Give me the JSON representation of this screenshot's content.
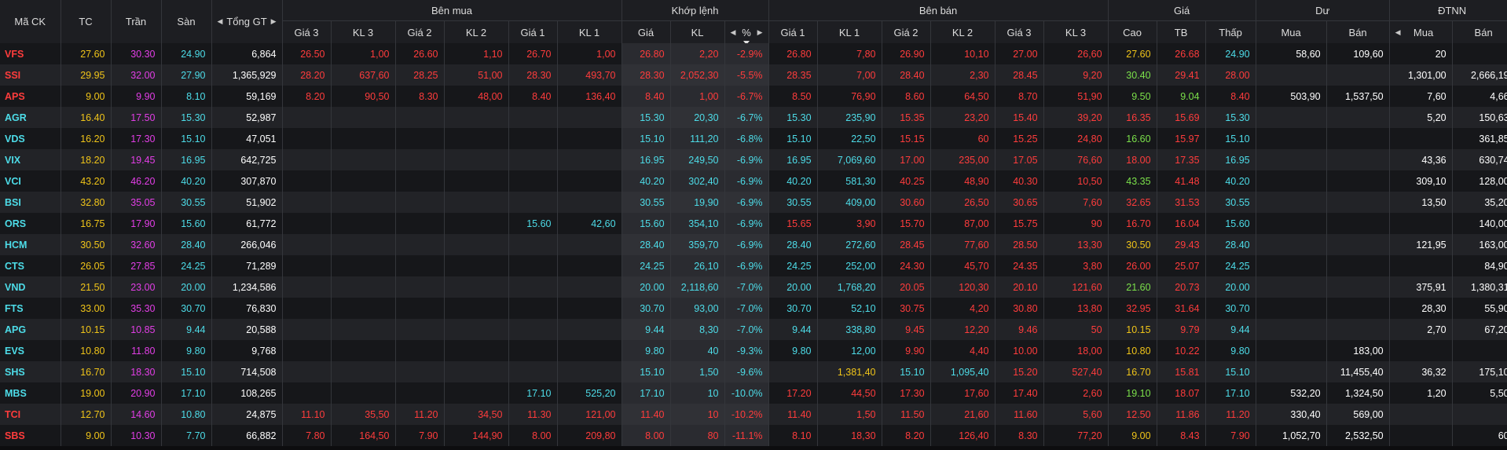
{
  "colors": {
    "ref": "#f0c419",
    "ceil": "#e23ee6",
    "floor": "#4ddce8",
    "up": "#7be04a",
    "down": "#ff3c3c",
    "flat": "#f0c419",
    "neutral": "#ffffff"
  },
  "headers": {
    "symbol": "Mã CK",
    "ref": "TC",
    "ceil": "Trần",
    "floor": "Sàn",
    "total": "Tổng GT",
    "buy": "Bên mua",
    "match": "Khớp lệnh",
    "sell": "Bên bán",
    "price": "Giá",
    "remain": "Dư",
    "foreign": "ĐTNN",
    "buy_cols": [
      "Giá 3",
      "KL 3",
      "Giá 2",
      "KL 2",
      "Giá 1",
      "KL 1"
    ],
    "match_cols": [
      "Giá",
      "KL",
      "%"
    ],
    "sell_cols": [
      "Giá 1",
      "KL 1",
      "Giá 2",
      "KL 2",
      "Giá 3",
      "KL 3"
    ],
    "price_cols": [
      "Cao",
      "TB",
      "Thấp"
    ],
    "remain_cols": [
      "Mua",
      "Bán"
    ],
    "foreign_cols": [
      "Mua",
      "Bán"
    ]
  },
  "rows": [
    {
      "sym": "VFS",
      "tc": "27.60",
      "tran": "30.30",
      "san": "24.90",
      "tgt": "6,864",
      "b3": "26.50",
      "kb3": "1,00",
      "b2": "26.60",
      "kb2": "1,10",
      "b1": "26.70",
      "kb1": "1,00",
      "mp": "26.80",
      "mk": "2,20",
      "pct": "-2.9%",
      "s1": "26.80",
      "ks1": "7,80",
      "s2": "26.90",
      "ks2": "10,10",
      "s3": "27.00",
      "ks3": "26,60",
      "cao": "27.60",
      "tb": "26.68",
      "thap": "24.90",
      "dm": "58,60",
      "db": "109,60",
      "fm": "20",
      "fb": "",
      "c": {
        "sym": "down",
        "b": "down",
        "mp": "down",
        "s1": "down",
        "s2": "down",
        "s3": "down",
        "cao": "ref",
        "tb": "down",
        "thap": "floor"
      }
    },
    {
      "sym": "SSI",
      "tc": "29.95",
      "tran": "32.00",
      "san": "27.90",
      "tgt": "1,365,929",
      "b3": "28.20",
      "kb3": "637,60",
      "b2": "28.25",
      "kb2": "51,00",
      "b1": "28.30",
      "kb1": "493,70",
      "mp": "28.30",
      "mk": "2,052,30",
      "pct": "-5.5%",
      "s1": "28.35",
      "ks1": "7,00",
      "s2": "28.40",
      "ks2": "2,30",
      "s3": "28.45",
      "ks3": "9,20",
      "cao": "30.40",
      "tb": "29.41",
      "thap": "28.00",
      "dm": "",
      "db": "",
      "fm": "1,301,00",
      "fb": "2,666,19",
      "c": {
        "sym": "down",
        "b": "down",
        "mp": "down",
        "s1": "down",
        "s2": "down",
        "s3": "down",
        "cao": "up",
        "tb": "down",
        "thap": "down"
      }
    },
    {
      "sym": "APS",
      "tc": "9.00",
      "tran": "9.90",
      "san": "8.10",
      "tgt": "59,169",
      "b3": "8.20",
      "kb3": "90,50",
      "b2": "8.30",
      "kb2": "48,00",
      "b1": "8.40",
      "kb1": "136,40",
      "mp": "8.40",
      "mk": "1,00",
      "pct": "-6.7%",
      "s1": "8.50",
      "ks1": "76,90",
      "s2": "8.60",
      "ks2": "64,50",
      "s3": "8.70",
      "ks3": "51,90",
      "cao": "9.50",
      "tb": "9.04",
      "thap": "8.40",
      "dm": "503,90",
      "db": "1,537,50",
      "fm": "7,60",
      "fb": "4,66",
      "c": {
        "sym": "down",
        "b": "down",
        "mp": "down",
        "s1": "down",
        "s2": "down",
        "s3": "down",
        "cao": "up",
        "tb": "up",
        "thap": "down"
      }
    },
    {
      "sym": "AGR",
      "tc": "16.40",
      "tran": "17.50",
      "san": "15.30",
      "tgt": "52,987",
      "b3": "",
      "kb3": "",
      "b2": "",
      "kb2": "",
      "b1": "",
      "kb1": "",
      "mp": "15.30",
      "mk": "20,30",
      "pct": "-6.7%",
      "s1": "15.30",
      "ks1": "235,90",
      "s2": "15.35",
      "ks2": "23,20",
      "s3": "15.40",
      "ks3": "39,20",
      "cao": "16.35",
      "tb": "15.69",
      "thap": "15.30",
      "dm": "",
      "db": "",
      "fm": "5,20",
      "fb": "150,63",
      "c": {
        "sym": "floor",
        "b": "floor",
        "mp": "floor",
        "s1": "floor",
        "s2": "down",
        "s3": "down",
        "cao": "down",
        "tb": "down",
        "thap": "floor"
      }
    },
    {
      "sym": "VDS",
      "tc": "16.20",
      "tran": "17.30",
      "san": "15.10",
      "tgt": "47,051",
      "b3": "",
      "kb3": "",
      "b2": "",
      "kb2": "",
      "b1": "",
      "kb1": "",
      "mp": "15.10",
      "mk": "111,20",
      "pct": "-6.8%",
      "s1": "15.10",
      "ks1": "22,50",
      "s2": "15.15",
      "ks2": "60",
      "s3": "15.25",
      "ks3": "24,80",
      "cao": "16.60",
      "tb": "15.97",
      "thap": "15.10",
      "dm": "",
      "db": "",
      "fm": "",
      "fb": "361,85",
      "c": {
        "sym": "floor",
        "b": "floor",
        "mp": "floor",
        "s1": "floor",
        "s2": "down",
        "s3": "down",
        "cao": "up",
        "tb": "down",
        "thap": "floor"
      }
    },
    {
      "sym": "VIX",
      "tc": "18.20",
      "tran": "19.45",
      "san": "16.95",
      "tgt": "642,725",
      "b3": "",
      "kb3": "",
      "b2": "",
      "kb2": "",
      "b1": "",
      "kb1": "",
      "mp": "16.95",
      "mk": "249,50",
      "pct": "-6.9%",
      "s1": "16.95",
      "ks1": "7,069,60",
      "s2": "17.00",
      "ks2": "235,00",
      "s3": "17.05",
      "ks3": "76,60",
      "cao": "18.00",
      "tb": "17.35",
      "thap": "16.95",
      "dm": "",
      "db": "",
      "fm": "43,36",
      "fb": "630,74",
      "c": {
        "sym": "floor",
        "b": "floor",
        "mp": "floor",
        "s1": "floor",
        "s2": "down",
        "s3": "down",
        "cao": "down",
        "tb": "down",
        "thap": "floor"
      }
    },
    {
      "sym": "VCI",
      "tc": "43.20",
      "tran": "46.20",
      "san": "40.20",
      "tgt": "307,870",
      "b3": "",
      "kb3": "",
      "b2": "",
      "kb2": "",
      "b1": "",
      "kb1": "",
      "mp": "40.20",
      "mk": "302,40",
      "pct": "-6.9%",
      "s1": "40.20",
      "ks1": "581,30",
      "s2": "40.25",
      "ks2": "48,90",
      "s3": "40.30",
      "ks3": "10,50",
      "cao": "43.35",
      "tb": "41.48",
      "thap": "40.20",
      "dm": "",
      "db": "",
      "fm": "309,10",
      "fb": "128,00",
      "c": {
        "sym": "floor",
        "b": "floor",
        "mp": "floor",
        "s1": "floor",
        "s2": "down",
        "s3": "down",
        "cao": "up",
        "tb": "down",
        "thap": "floor"
      }
    },
    {
      "sym": "BSI",
      "tc": "32.80",
      "tran": "35.05",
      "san": "30.55",
      "tgt": "51,902",
      "b3": "",
      "kb3": "",
      "b2": "",
      "kb2": "",
      "b1": "",
      "kb1": "",
      "mp": "30.55",
      "mk": "19,90",
      "pct": "-6.9%",
      "s1": "30.55",
      "ks1": "409,00",
      "s2": "30.60",
      "ks2": "26,50",
      "s3": "30.65",
      "ks3": "7,60",
      "cao": "32.65",
      "tb": "31.53",
      "thap": "30.55",
      "dm": "",
      "db": "",
      "fm": "13,50",
      "fb": "35,20",
      "c": {
        "sym": "floor",
        "b": "floor",
        "mp": "floor",
        "s1": "floor",
        "s2": "down",
        "s3": "down",
        "cao": "down",
        "tb": "down",
        "thap": "floor"
      }
    },
    {
      "sym": "ORS",
      "tc": "16.75",
      "tran": "17.90",
      "san": "15.60",
      "tgt": "61,772",
      "b3": "",
      "kb3": "",
      "b2": "",
      "kb2": "",
      "b1": "15.60",
      "kb1": "42,60",
      "mp": "15.60",
      "mk": "354,10",
      "pct": "-6.9%",
      "s1": "15.65",
      "ks1": "3,90",
      "s2": "15.70",
      "ks2": "87,00",
      "s3": "15.75",
      "ks3": "90",
      "cao": "16.70",
      "tb": "16.04",
      "thap": "15.60",
      "dm": "",
      "db": "",
      "fm": "",
      "fb": "140,00",
      "c": {
        "sym": "floor",
        "b": "floor",
        "mp": "floor",
        "s1": "down",
        "s2": "down",
        "s3": "down",
        "cao": "down",
        "tb": "down",
        "thap": "floor"
      }
    },
    {
      "sym": "HCM",
      "tc": "30.50",
      "tran": "32.60",
      "san": "28.40",
      "tgt": "266,046",
      "b3": "",
      "kb3": "",
      "b2": "",
      "kb2": "",
      "b1": "",
      "kb1": "",
      "mp": "28.40",
      "mk": "359,70",
      "pct": "-6.9%",
      "s1": "28.40",
      "ks1": "272,60",
      "s2": "28.45",
      "ks2": "77,60",
      "s3": "28.50",
      "ks3": "13,30",
      "cao": "30.50",
      "tb": "29.43",
      "thap": "28.40",
      "dm": "",
      "db": "",
      "fm": "121,95",
      "fb": "163,00",
      "c": {
        "sym": "floor",
        "b": "floor",
        "mp": "floor",
        "s1": "floor",
        "s2": "down",
        "s3": "down",
        "cao": "ref",
        "tb": "down",
        "thap": "floor"
      }
    },
    {
      "sym": "CTS",
      "tc": "26.05",
      "tran": "27.85",
      "san": "24.25",
      "tgt": "71,289",
      "b3": "",
      "kb3": "",
      "b2": "",
      "kb2": "",
      "b1": "",
      "kb1": "",
      "mp": "24.25",
      "mk": "26,10",
      "pct": "-6.9%",
      "s1": "24.25",
      "ks1": "252,00",
      "s2": "24.30",
      "ks2": "45,70",
      "s3": "24.35",
      "ks3": "3,80",
      "cao": "26.00",
      "tb": "25.07",
      "thap": "24.25",
      "dm": "",
      "db": "",
      "fm": "",
      "fb": "84,90",
      "c": {
        "sym": "floor",
        "b": "floor",
        "mp": "floor",
        "s1": "floor",
        "s2": "down",
        "s3": "down",
        "cao": "down",
        "tb": "down",
        "thap": "floor"
      }
    },
    {
      "sym": "VND",
      "tc": "21.50",
      "tran": "23.00",
      "san": "20.00",
      "tgt": "1,234,586",
      "b3": "",
      "kb3": "",
      "b2": "",
      "kb2": "",
      "b1": "",
      "kb1": "",
      "mp": "20.00",
      "mk": "2,118,60",
      "pct": "-7.0%",
      "s1": "20.00",
      "ks1": "1,768,20",
      "s2": "20.05",
      "ks2": "120,30",
      "s3": "20.10",
      "ks3": "121,60",
      "cao": "21.60",
      "tb": "20.73",
      "thap": "20.00",
      "dm": "",
      "db": "",
      "fm": "375,91",
      "fb": "1,380,31",
      "c": {
        "sym": "floor",
        "b": "floor",
        "mp": "floor",
        "s1": "floor",
        "s2": "down",
        "s3": "down",
        "cao": "up",
        "tb": "down",
        "thap": "floor"
      }
    },
    {
      "sym": "FTS",
      "tc": "33.00",
      "tran": "35.30",
      "san": "30.70",
      "tgt": "76,830",
      "b3": "",
      "kb3": "",
      "b2": "",
      "kb2": "",
      "b1": "",
      "kb1": "",
      "mp": "30.70",
      "mk": "93,00",
      "pct": "-7.0%",
      "s1": "30.70",
      "ks1": "52,10",
      "s2": "30.75",
      "ks2": "4,20",
      "s3": "30.80",
      "ks3": "13,80",
      "cao": "32.95",
      "tb": "31.64",
      "thap": "30.70",
      "dm": "",
      "db": "",
      "fm": "28,30",
      "fb": "55,90",
      "c": {
        "sym": "floor",
        "b": "floor",
        "mp": "floor",
        "s1": "floor",
        "s2": "down",
        "s3": "down",
        "cao": "down",
        "tb": "down",
        "thap": "floor"
      }
    },
    {
      "sym": "APG",
      "tc": "10.15",
      "tran": "10.85",
      "san": "9.44",
      "tgt": "20,588",
      "b3": "",
      "kb3": "",
      "b2": "",
      "kb2": "",
      "b1": "",
      "kb1": "",
      "mp": "9.44",
      "mk": "8,30",
      "pct": "-7.0%",
      "s1": "9.44",
      "ks1": "338,80",
      "s2": "9.45",
      "ks2": "12,20",
      "s3": "9.46",
      "ks3": "50",
      "cao": "10.15",
      "tb": "9.79",
      "thap": "9.44",
      "dm": "",
      "db": "",
      "fm": "2,70",
      "fb": "67,20",
      "c": {
        "sym": "floor",
        "b": "floor",
        "mp": "floor",
        "s1": "floor",
        "s2": "down",
        "s3": "down",
        "cao": "ref",
        "tb": "down",
        "thap": "floor"
      }
    },
    {
      "sym": "EVS",
      "tc": "10.80",
      "tran": "11.80",
      "san": "9.80",
      "tgt": "9,768",
      "b3": "",
      "kb3": "",
      "b2": "",
      "kb2": "",
      "b1": "",
      "kb1": "",
      "mp": "9.80",
      "mk": "40",
      "pct": "-9.3%",
      "s1": "9.80",
      "ks1": "12,00",
      "s2": "9.90",
      "ks2": "4,40",
      "s3": "10.00",
      "ks3": "18,00",
      "cao": "10.80",
      "tb": "10.22",
      "thap": "9.80",
      "dm": "",
      "db": "183,00",
      "fm": "",
      "fb": "",
      "c": {
        "sym": "floor",
        "b": "floor",
        "mp": "floor",
        "s1": "floor",
        "s2": "down",
        "s3": "down",
        "cao": "ref",
        "tb": "down",
        "thap": "floor"
      }
    },
    {
      "sym": "SHS",
      "tc": "16.70",
      "tran": "18.30",
      "san": "15.10",
      "tgt": "714,508",
      "b3": "",
      "kb3": "",
      "b2": "",
      "kb2": "",
      "b1": "",
      "kb1": "",
      "mp": "15.10",
      "mk": "1,50",
      "pct": "-9.6%",
      "s1": "",
      "ks1": "1,381,40",
      "s2": "15.10",
      "ks2": "1,095,40",
      "s3": "15.20",
      "ks3": "527,40",
      "cao": "16.70",
      "tb": "15.81",
      "thap": "15.10",
      "dm": "",
      "db": "11,455,40",
      "fm": "36,32",
      "fb": "175,10",
      "c": {
        "sym": "floor",
        "b": "floor",
        "mp": "floor",
        "s1": "ref",
        "s2": "floor",
        "s3": "down",
        "cao": "ref",
        "tb": "down",
        "thap": "floor"
      }
    },
    {
      "sym": "MBS",
      "tc": "19.00",
      "tran": "20.90",
      "san": "17.10",
      "tgt": "108,265",
      "b3": "",
      "kb3": "",
      "b2": "",
      "kb2": "",
      "b1": "17.10",
      "kb1": "525,20",
      "mp": "17.10",
      "mk": "10",
      "pct": "-10.0%",
      "s1": "17.20",
      "ks1": "44,50",
      "s2": "17.30",
      "ks2": "17,60",
      "s3": "17.40",
      "ks3": "2,60",
      "cao": "19.10",
      "tb": "18.07",
      "thap": "17.10",
      "dm": "532,20",
      "db": "1,324,50",
      "fm": "1,20",
      "fb": "5,50",
      "c": {
        "sym": "floor",
        "b": "floor",
        "mp": "floor",
        "s1": "down",
        "s2": "down",
        "s3": "down",
        "cao": "up",
        "tb": "down",
        "thap": "floor"
      }
    },
    {
      "sym": "TCI",
      "tc": "12.70",
      "tran": "14.60",
      "san": "10.80",
      "tgt": "24,875",
      "b3": "11.10",
      "kb3": "35,50",
      "b2": "11.20",
      "kb2": "34,50",
      "b1": "11.30",
      "kb1": "121,00",
      "mp": "11.40",
      "mk": "10",
      "pct": "-10.2%",
      "s1": "11.40",
      "ks1": "1,50",
      "s2": "11.50",
      "ks2": "21,60",
      "s3": "11.60",
      "ks3": "5,60",
      "cao": "12.50",
      "tb": "11.86",
      "thap": "11.20",
      "dm": "330,40",
      "db": "569,00",
      "fm": "",
      "fb": "",
      "c": {
        "sym": "down",
        "b": "down",
        "mp": "down",
        "s1": "down",
        "s2": "down",
        "s3": "down",
        "cao": "down",
        "tb": "down",
        "thap": "down"
      }
    },
    {
      "sym": "SBS",
      "tc": "9.00",
      "tran": "10.30",
      "san": "7.70",
      "tgt": "66,882",
      "b3": "7.80",
      "kb3": "164,50",
      "b2": "7.90",
      "kb2": "144,90",
      "b1": "8.00",
      "kb1": "209,80",
      "mp": "8.00",
      "mk": "80",
      "pct": "-11.1%",
      "s1": "8.10",
      "ks1": "18,30",
      "s2": "8.20",
      "ks2": "126,40",
      "s3": "8.30",
      "ks3": "77,20",
      "cao": "9.00",
      "tb": "8.43",
      "thap": "7.90",
      "dm": "1,052,70",
      "db": "2,532,50",
      "fm": "",
      "fb": "60",
      "c": {
        "sym": "down",
        "b": "down",
        "mp": "down",
        "s1": "down",
        "s2": "down",
        "s3": "down",
        "cao": "ref",
        "tb": "down",
        "thap": "down"
      }
    }
  ]
}
